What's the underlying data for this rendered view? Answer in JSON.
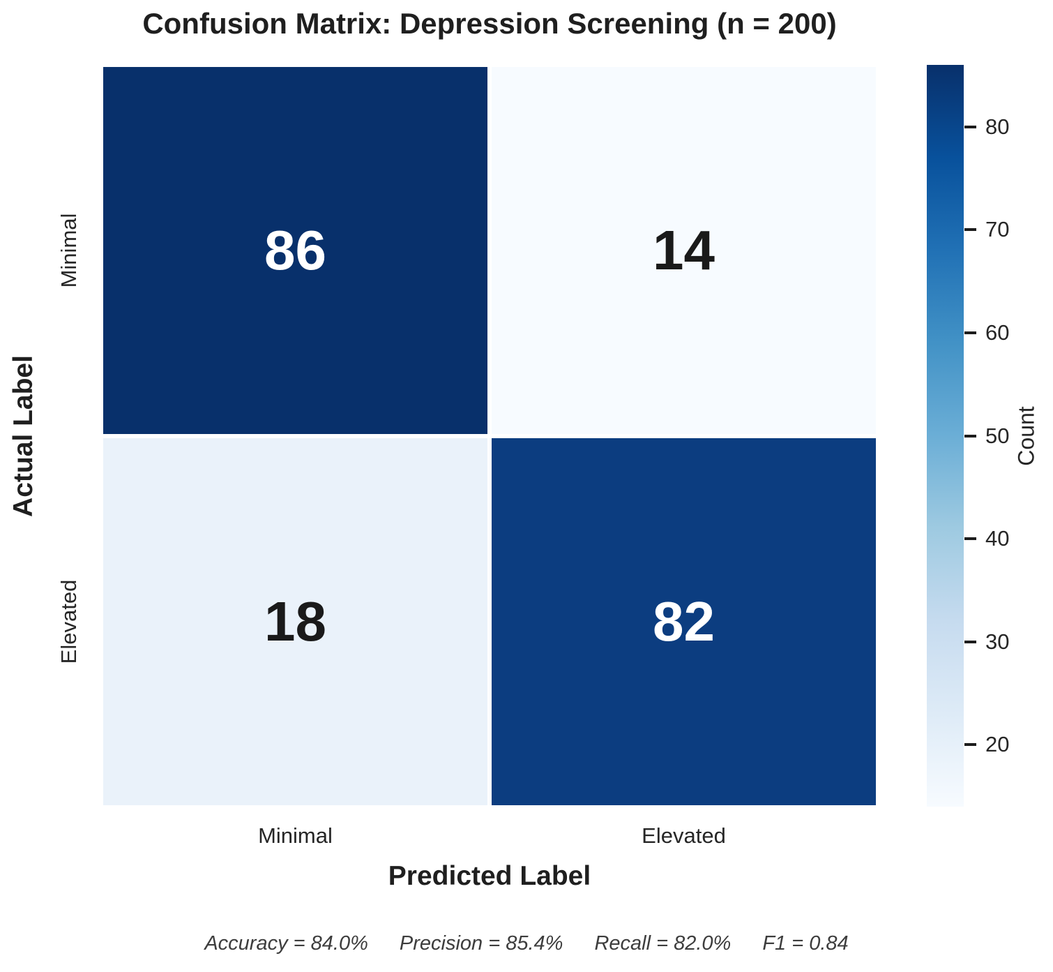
{
  "chart_data": {
    "type": "heatmap",
    "title": "Confusion Matrix: Depression Screening (n = 200)",
    "xlabel": "Predicted Label",
    "ylabel": "Actual Label",
    "x_categories": [
      "Minimal",
      "Elevated"
    ],
    "y_categories": [
      "Minimal",
      "Elevated"
    ],
    "values": [
      [
        86,
        14
      ],
      [
        18,
        82
      ]
    ],
    "cell_colors": [
      [
        "#08306b",
        "#f7fbff"
      ],
      [
        "#eaf2fa",
        "#0c3d80"
      ]
    ],
    "cell_text_colors": [
      [
        "#ffffff",
        "#1a1a1a"
      ],
      [
        "#1a1a1a",
        "#ffffff"
      ]
    ],
    "colorbar": {
      "label": "Count",
      "vmin": 14,
      "vmax": 86,
      "ticks": [
        80,
        70,
        60,
        50,
        40,
        30,
        20
      ],
      "colormap": "Blues",
      "gradient_stops": [
        {
          "pos": 0,
          "color": "#f7fbff"
        },
        {
          "pos": 12.5,
          "color": "#deebf7"
        },
        {
          "pos": 25,
          "color": "#c6dbef"
        },
        {
          "pos": 37.5,
          "color": "#9ecae1"
        },
        {
          "pos": 50,
          "color": "#6baed6"
        },
        {
          "pos": 62.5,
          "color": "#4292c6"
        },
        {
          "pos": 75,
          "color": "#2171b5"
        },
        {
          "pos": 87.5,
          "color": "#08519c"
        },
        {
          "pos": 100,
          "color": "#08306b"
        }
      ]
    },
    "annotations": [
      "Accuracy = 84.0%",
      "Precision = 85.4%",
      "Recall = 82.0%",
      "F1 = 0.84"
    ],
    "grid": false,
    "legend_position": "right-colorbar"
  }
}
